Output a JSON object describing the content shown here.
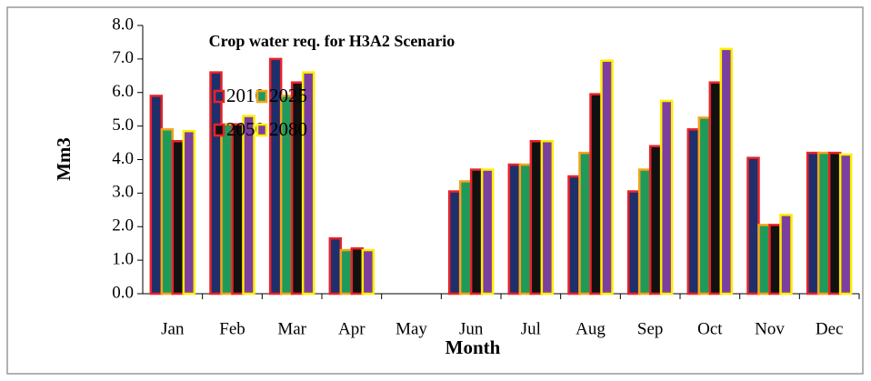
{
  "chart_data": {
    "type": "bar",
    "title": "Crop water req. for H3A2 Scenario",
    "x_label": "Month",
    "y_label": "Mm3",
    "categories": [
      "Jan",
      "Feb",
      "Mar",
      "Apr",
      "May",
      "Jun",
      "Jul",
      "Aug",
      "Sep",
      "Oct",
      "Nov",
      "Dec"
    ],
    "series": [
      {
        "name": "2010",
        "color": "#1f2f6b",
        "edgecolor": "#e8232a",
        "values": [
          5.9,
          6.6,
          7.0,
          1.65,
          0,
          3.05,
          3.85,
          3.5,
          3.05,
          4.9,
          4.05,
          4.2
        ]
      },
      {
        "name": "2025",
        "color": "#1f9a5a",
        "edgecolor": "#f5a31a",
        "values": [
          4.9,
          5.05,
          5.9,
          1.3,
          0,
          3.35,
          3.85,
          4.2,
          3.7,
          5.25,
          2.05,
          4.2
        ]
      },
      {
        "name": "2050",
        "color": "#111111",
        "edgecolor": "#e8232a",
        "values": [
          4.55,
          5.05,
          6.3,
          1.35,
          0,
          3.7,
          4.55,
          5.95,
          4.4,
          6.3,
          2.05,
          4.2
        ]
      },
      {
        "name": "2080",
        "color": "#7b3fa0",
        "edgecolor": "#ffee00",
        "values": [
          4.85,
          5.3,
          6.6,
          1.3,
          0,
          3.7,
          4.55,
          6.95,
          5.75,
          7.3,
          2.35,
          4.15
        ]
      }
    ],
    "ylim": [
      0,
      8
    ],
    "yticks": [
      {
        "value": 0,
        "label": "0.0"
      },
      {
        "value": 1,
        "label": "1.0"
      },
      {
        "value": 2,
        "label": "2.0"
      },
      {
        "value": 3,
        "label": "3.0"
      },
      {
        "value": 4,
        "label": "4.0"
      },
      {
        "value": 5,
        "label": "5.0"
      },
      {
        "value": 6,
        "label": "6.0"
      },
      {
        "value": 7,
        "label": "7.0"
      },
      {
        "value": 8,
        "label": "8.0"
      }
    ],
    "grid": false,
    "legend": "upper left"
  }
}
